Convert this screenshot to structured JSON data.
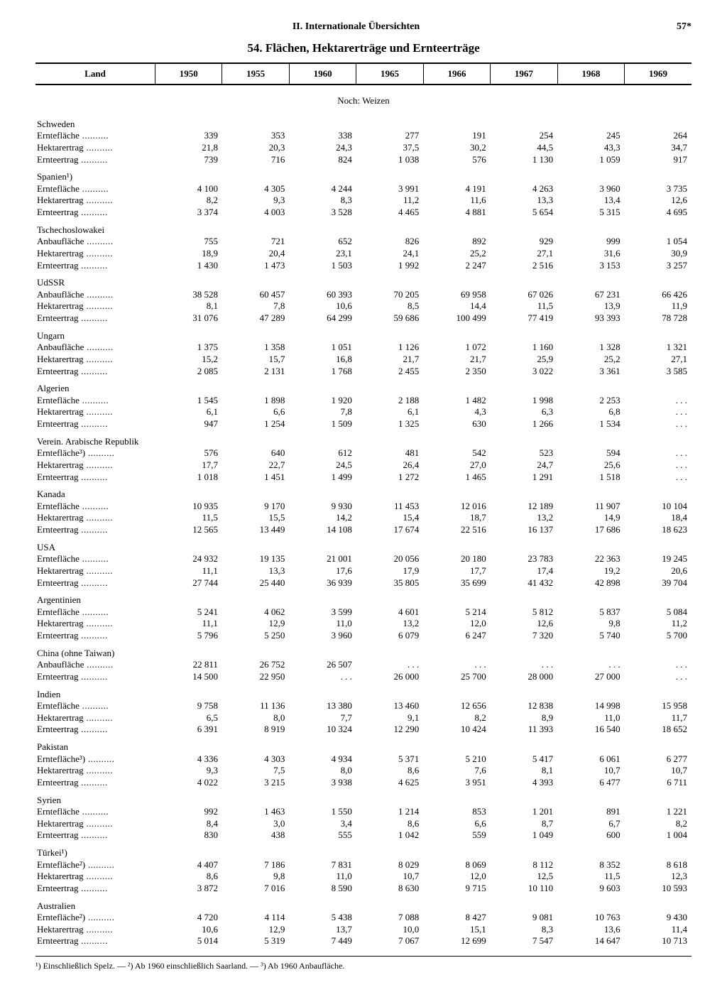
{
  "header": {
    "section": "II. Internationale Übersichten",
    "page": "57*"
  },
  "title": "54. Flächen, Hektarerträge und Ernteerträge",
  "columns": {
    "land": "Land",
    "years": [
      "1950",
      "1955",
      "1960",
      "1965",
      "1966",
      "1967",
      "1968",
      "1969"
    ]
  },
  "subtitle": "Noch: Weizen",
  "row_labels": {
    "erntefl": "Erntefläche",
    "hektar": "Hektarertrag",
    "ernteert": "Ernteertrag",
    "anbaufl": "Anbaufläche",
    "erntefl2": "Erntefläche²)",
    "erntefl3": "Erntefläche³)"
  },
  "countries": [
    {
      "name": "Schweden",
      "rows": [
        {
          "k": "erntefl",
          "v": [
            "339",
            "353",
            "338",
            "277",
            "191",
            "254",
            "245",
            "264"
          ]
        },
        {
          "k": "hektar",
          "v": [
            "21,8",
            "20,3",
            "24,3",
            "37,5",
            "30,2",
            "44,5",
            "43,3",
            "34,7"
          ]
        },
        {
          "k": "ernteert",
          "v": [
            "739",
            "716",
            "824",
            "1 038",
            "576",
            "1 130",
            "1 059",
            "917"
          ]
        }
      ]
    },
    {
      "name": "Spanien¹)",
      "rows": [
        {
          "k": "erntefl",
          "v": [
            "4 100",
            "4 305",
            "4 244",
            "3 991",
            "4 191",
            "4 263",
            "3 960",
            "3 735"
          ]
        },
        {
          "k": "hektar",
          "v": [
            "8,2",
            "9,3",
            "8,3",
            "11,2",
            "11,6",
            "13,3",
            "13,4",
            "12,6"
          ]
        },
        {
          "k": "ernteert",
          "v": [
            "3 374",
            "4 003",
            "3 528",
            "4 465",
            "4 881",
            "5 654",
            "5 315",
            "4 695"
          ]
        }
      ]
    },
    {
      "name": "Tschechoslowakei",
      "rows": [
        {
          "k": "anbaufl",
          "v": [
            "755",
            "721",
            "652",
            "826",
            "892",
            "929",
            "999",
            "1 054"
          ]
        },
        {
          "k": "hektar",
          "v": [
            "18,9",
            "20,4",
            "23,1",
            "24,1",
            "25,2",
            "27,1",
            "31,6",
            "30,9"
          ]
        },
        {
          "k": "ernteert",
          "v": [
            "1 430",
            "1 473",
            "1 503",
            "1 992",
            "2 247",
            "2 516",
            "3 153",
            "3 257"
          ]
        }
      ]
    },
    {
      "name": "UdSSR",
      "rows": [
        {
          "k": "anbaufl",
          "v": [
            "38 528",
            "60 457",
            "60 393",
            "70 205",
            "69 958",
            "67 026",
            "67 231",
            "66 426"
          ]
        },
        {
          "k": "hektar",
          "v": [
            "8,1",
            "7,8",
            "10,6",
            "8,5",
            "14,4",
            "11,5",
            "13,9",
            "11,9"
          ]
        },
        {
          "k": "ernteert",
          "v": [
            "31 076",
            "47 289",
            "64 299",
            "59 686",
            "100 499",
            "77 419",
            "93 393",
            "78 728"
          ]
        }
      ]
    },
    {
      "name": "Ungarn",
      "rows": [
        {
          "k": "anbaufl",
          "v": [
            "1 375",
            "1 358",
            "1 051",
            "1 126",
            "1 072",
            "1 160",
            "1 328",
            "1 321"
          ]
        },
        {
          "k": "hektar",
          "v": [
            "15,2",
            "15,7",
            "16,8",
            "21,7",
            "21,7",
            "25,9",
            "25,2",
            "27,1"
          ]
        },
        {
          "k": "ernteert",
          "v": [
            "2 085",
            "2 131",
            "1 768",
            "2 455",
            "2 350",
            "3 022",
            "3 361",
            "3 585"
          ]
        }
      ]
    },
    {
      "name": "Algerien",
      "rows": [
        {
          "k": "erntefl",
          "v": [
            "1 545",
            "1 898",
            "1 920",
            "2 188",
            "1 482",
            "1 998",
            "2 253",
            ". . ."
          ]
        },
        {
          "k": "hektar",
          "v": [
            "6,1",
            "6,6",
            "7,8",
            "6,1",
            "4,3",
            "6,3",
            "6,8",
            ". . ."
          ]
        },
        {
          "k": "ernteert",
          "v": [
            "947",
            "1 254",
            "1 509",
            "1 325",
            "630",
            "1 266",
            "1 534",
            ". . ."
          ]
        }
      ]
    },
    {
      "name": "Verein. Arabische Republik",
      "rows": [
        {
          "k": "erntefl3",
          "v": [
            "576",
            "640",
            "612",
            "481",
            "542",
            "523",
            "594",
            ". . ."
          ]
        },
        {
          "k": "hektar",
          "v": [
            "17,7",
            "22,7",
            "24,5",
            "26,4",
            "27,0",
            "24,7",
            "25,6",
            ". . ."
          ]
        },
        {
          "k": "ernteert",
          "v": [
            "1 018",
            "1 451",
            "1 499",
            "1 272",
            "1 465",
            "1 291",
            "1 518",
            ". . ."
          ]
        }
      ]
    },
    {
      "name": "Kanada",
      "rows": [
        {
          "k": "erntefl",
          "v": [
            "10 935",
            "9 170",
            "9 930",
            "11 453",
            "12 016",
            "12 189",
            "11 907",
            "10 104"
          ]
        },
        {
          "k": "hektar",
          "v": [
            "11,5",
            "15,5",
            "14,2",
            "15,4",
            "18,7",
            "13,2",
            "14,9",
            "18,4"
          ]
        },
        {
          "k": "ernteert",
          "v": [
            "12 565",
            "13 449",
            "14 108",
            "17 674",
            "22 516",
            "16 137",
            "17 686",
            "18 623"
          ]
        }
      ]
    },
    {
      "name": "USA",
      "rows": [
        {
          "k": "erntefl",
          "v": [
            "24 932",
            "19 135",
            "21 001",
            "20 056",
            "20 180",
            "23 783",
            "22 363",
            "19 245"
          ]
        },
        {
          "k": "hektar",
          "v": [
            "11,1",
            "13,3",
            "17,6",
            "17,9",
            "17,7",
            "17,4",
            "19,2",
            "20,6"
          ]
        },
        {
          "k": "ernteert",
          "v": [
            "27 744",
            "25 440",
            "36 939",
            "35 805",
            "35 699",
            "41 432",
            "42 898",
            "39 704"
          ]
        }
      ]
    },
    {
      "name": "Argentinien",
      "rows": [
        {
          "k": "erntefl",
          "v": [
            "5 241",
            "4 062",
            "3 599",
            "4 601",
            "5 214",
            "5 812",
            "5 837",
            "5 084"
          ]
        },
        {
          "k": "hektar",
          "v": [
            "11,1",
            "12,9",
            "11,0",
            "13,2",
            "12,0",
            "12,6",
            "9,8",
            "11,2"
          ]
        },
        {
          "k": "ernteert",
          "v": [
            "5 796",
            "5 250",
            "3 960",
            "6 079",
            "6 247",
            "7 320",
            "5 740",
            "5 700"
          ]
        }
      ]
    },
    {
      "name": "China (ohne Taiwan)",
      "rows": [
        {
          "k": "anbaufl",
          "v": [
            "22 811",
            "26 752",
            "26 507",
            ". . .",
            ". . .",
            ". . .",
            ". . .",
            ". . ."
          ]
        },
        {
          "k": "ernteert",
          "v": [
            "14 500",
            "22 950",
            ". . .",
            "26 000",
            "25 700",
            "28 000",
            "27 000",
            ". . ."
          ]
        }
      ]
    },
    {
      "name": "Indien",
      "rows": [
        {
          "k": "erntefl",
          "v": [
            "9 758",
            "11 136",
            "13 380",
            "13 460",
            "12 656",
            "12 838",
            "14 998",
            "15 958"
          ]
        },
        {
          "k": "hektar",
          "v": [
            "6,5",
            "8,0",
            "7,7",
            "9,1",
            "8,2",
            "8,9",
            "11,0",
            "11,7"
          ]
        },
        {
          "k": "ernteert",
          "v": [
            "6 391",
            "8 919",
            "10 324",
            "12 290",
            "10 424",
            "11 393",
            "16 540",
            "18 652"
          ]
        }
      ]
    },
    {
      "name": "Pakistan",
      "rows": [
        {
          "k": "erntefl3",
          "v": [
            "4 336",
            "4 303",
            "4 934",
            "5 371",
            "5 210",
            "5 417",
            "6 061",
            "6 277"
          ]
        },
        {
          "k": "hektar",
          "v": [
            "9,3",
            "7,5",
            "8,0",
            "8,6",
            "7,6",
            "8,1",
            "10,7",
            "10,7"
          ]
        },
        {
          "k": "ernteert",
          "v": [
            "4 022",
            "3 215",
            "3 938",
            "4 625",
            "3 951",
            "4 393",
            "6 477",
            "6 711"
          ]
        }
      ]
    },
    {
      "name": "Syrien",
      "rows": [
        {
          "k": "erntefl",
          "v": [
            "992",
            "1 463",
            "1 550",
            "1 214",
            "853",
            "1 201",
            "891",
            "1 221"
          ]
        },
        {
          "k": "hektar",
          "v": [
            "8,4",
            "3,0",
            "3,4",
            "8,6",
            "6,6",
            "8,7",
            "6,7",
            "8,2"
          ]
        },
        {
          "k": "ernteert",
          "v": [
            "830",
            "438",
            "555",
            "1 042",
            "559",
            "1 049",
            "600",
            "1 004"
          ]
        }
      ]
    },
    {
      "name": "Türkei¹)",
      "rows": [
        {
          "k": "erntefl2",
          "v": [
            "4 407",
            "7 186",
            "7 831",
            "8 029",
            "8 069",
            "8 112",
            "8 352",
            "8 618"
          ]
        },
        {
          "k": "hektar",
          "v": [
            "8,6",
            "9,8",
            "11,0",
            "10,7",
            "12,0",
            "12,5",
            "11,5",
            "12,3"
          ]
        },
        {
          "k": "ernteert",
          "v": [
            "3 872",
            "7 016",
            "8 590",
            "8 630",
            "9 715",
            "10 110",
            "9 603",
            "10 593"
          ]
        }
      ]
    },
    {
      "name": "Australien",
      "rows": [
        {
          "k": "erntefl2",
          "v": [
            "4 720",
            "4 114",
            "5 438",
            "7 088",
            "8 427",
            "9 081",
            "10 763",
            "9 430"
          ]
        },
        {
          "k": "hektar",
          "v": [
            "10,6",
            "12,9",
            "13,7",
            "10,0",
            "15,1",
            "8,3",
            "13,6",
            "11,4"
          ]
        },
        {
          "k": "ernteert",
          "v": [
            "5 014",
            "5 319",
            "7 449",
            "7 067",
            "12 699",
            "7 547",
            "14 647",
            "10 713"
          ]
        }
      ]
    }
  ],
  "footnotes": "¹) Einschließlich Spelz. — ²) Ab 1960 einschließlich Saarland. — ³) Ab 1960 Anbaufläche."
}
